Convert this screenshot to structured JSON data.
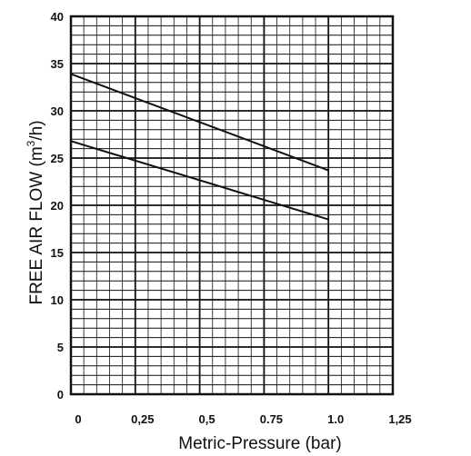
{
  "chart_data": {
    "type": "line",
    "title": "",
    "xlabel": "Metric-Pressure (bar)",
    "ylabel_prefix": "FREE AIR FLOW (m",
    "ylabel_sup": "3",
    "ylabel_suffix": "/h)",
    "xlim": [
      0,
      1.25
    ],
    "ylim": [
      0,
      40
    ],
    "x_ticks": [
      "0",
      "0,25",
      "0,5",
      "0.75",
      "1.0",
      "1,25"
    ],
    "x_tick_values": [
      0,
      0.25,
      0.5,
      0.75,
      1.0,
      1.25
    ],
    "y_ticks": [
      "0",
      "5",
      "10",
      "15",
      "20",
      "25",
      "30",
      "35",
      "40"
    ],
    "y_tick_values": [
      0,
      5,
      10,
      15,
      20,
      25,
      30,
      35,
      40
    ],
    "grid": true,
    "series": [
      {
        "x": [
          0,
          1.0
        ],
        "y": [
          33.9,
          23.7
        ]
      },
      {
        "x": [
          0,
          1.0
        ],
        "y": [
          26.8,
          18.5
        ]
      }
    ],
    "colors": {
      "grid": "#111111",
      "line": "#111111",
      "background": "#ffffff"
    }
  }
}
